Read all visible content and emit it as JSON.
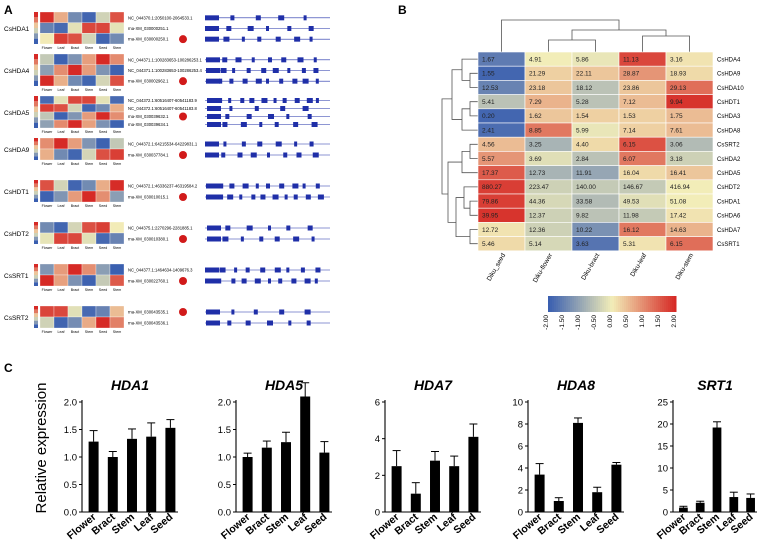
{
  "panels": {
    "a": "A",
    "b": "B",
    "c": "C"
  },
  "panel_a": {
    "tissues": [
      "Flower",
      "Leaf",
      "Bract",
      "Stem",
      "Seed",
      "Stem"
    ],
    "genes": [
      {
        "name": "CsHDA1",
        "ids": [
          "NC_044370.1:2050100-2064533.1",
          "rna-XM_030000251.1",
          "rna-XM_030000250.1"
        ],
        "red_dot_row": 2
      },
      {
        "name": "CsHDA4",
        "ids": [
          "NC_044371.1:100283653-100286253.1",
          "NC_044371.1:100283653-100286253.4",
          "rna-XM_030002962.1"
        ],
        "red_dot_row": 2
      },
      {
        "name": "CsHDA5",
        "ids": [
          "NC_044372.1:60516407-60541183.9",
          "NC_044372.1:60516407-60541183.8",
          "rna-XM_030039632.1",
          "rna-XM_030039634.1"
        ],
        "red_dot_row": 2
      },
      {
        "name": "CsHDA9",
        "ids": [
          "NC_044372.1:64215534-64229831.1",
          "rna-XM_030037784.1"
        ],
        "red_dot_row": 1
      },
      {
        "name": "CsHDT1",
        "ids": [
          "NC_044372.1:46336237-46319584.2",
          "rna-XM_030010015.1"
        ],
        "red_dot_row": 1
      },
      {
        "name": "CsHDT2",
        "ids": [
          "NC_044375.1:2270296-2281885.1",
          "rna-XM_030010380.1"
        ],
        "red_dot_row": 1
      },
      {
        "name": "CsSRT1",
        "ids": [
          "NC_044377.1:1464634-1409676.3",
          "rna-XM_030022760.1"
        ],
        "red_dot_row": 1
      },
      {
        "name": "CsSRT2",
        "ids": [
          "rna-XM_030043535.1",
          "rna-XM_030043536.1"
        ],
        "red_dot_row": 0
      }
    ]
  },
  "heatmap": {
    "rows": [
      "CsHDA4",
      "CsHDA9",
      "CsHDA10",
      "CsHDT1",
      "CsHDA3",
      "CsHDA8",
      "CsSRT2",
      "CsHDA2",
      "CsHDA5",
      "CsHDT2",
      "CsHDA1",
      "CsHDA6",
      "CsHDA7",
      "CsSRT1"
    ],
    "columns": [
      "Diku_seed",
      "Diku-flower",
      "Diku-bract",
      "Diku-leaf",
      "Diku-stem"
    ],
    "labels": [
      [
        "1.67",
        "4.91",
        "5.86",
        "11.13",
        "3.16"
      ],
      [
        "1.55",
        "21.29",
        "22.11",
        "28.87",
        "18.93"
      ],
      [
        "12.53",
        "23.18",
        "18.12",
        "23.86",
        "29.13"
      ],
      [
        "5.41",
        "7.29",
        "5.28",
        "7.12",
        "9.94"
      ],
      [
        "0.20",
        "1.62",
        "1.54",
        "1.53",
        "1.75"
      ],
      [
        "2.41",
        "8.85",
        "5.99",
        "7.14",
        "7.61"
      ],
      [
        "4.56",
        "3.25",
        "4.40",
        "6.15",
        "3.06"
      ],
      [
        "5.57",
        "3.69",
        "2.84",
        "6.07",
        "3.18"
      ],
      [
        "17.37",
        "12.73",
        "11.91",
        "16.04",
        "16.41"
      ],
      [
        "880.27",
        "223.47",
        "140.00",
        "146.67",
        "416.94"
      ],
      [
        "79.86",
        "44.36",
        "33.58",
        "49.53",
        "51.08"
      ],
      [
        "39.95",
        "12.37",
        "9.82",
        "11.98",
        "17.42"
      ],
      [
        "12.72",
        "12.36",
        "10.22",
        "16.12",
        "14.63"
      ],
      [
        "5.46",
        "5.14",
        "3.63",
        "5.31",
        "6.15"
      ]
    ],
    "zscores": [
      [
        -1.6,
        0.0,
        -0.1,
        1.7,
        0.1
      ],
      [
        -1.9,
        0.3,
        0.4,
        0.9,
        0.2
      ],
      [
        -1.5,
        0.4,
        -0.6,
        0.4,
        1.3
      ],
      [
        -0.6,
        0.6,
        -0.6,
        0.5,
        1.9
      ],
      [
        -1.9,
        0.4,
        0.3,
        0.3,
        0.5
      ],
      [
        -1.8,
        1.2,
        -0.1,
        0.3,
        0.5
      ],
      [
        0.5,
        -0.8,
        0.2,
        1.6,
        -0.7
      ],
      [
        0.9,
        -0.2,
        -0.6,
        1.2,
        -0.4
      ],
      [
        1.5,
        -0.8,
        -1.0,
        0.2,
        0.4
      ],
      [
        1.8,
        -0.4,
        -0.5,
        -0.5,
        0.0
      ],
      [
        1.8,
        -0.3,
        -0.7,
        -0.2,
        0.0
      ],
      [
        1.9,
        -0.4,
        -0.6,
        -0.5,
        0.1
      ],
      [
        0.1,
        -0.4,
        -1.3,
        1.2,
        0.6
      ],
      [
        0.2,
        -0.3,
        -1.7,
        0.1,
        1.3
      ]
    ],
    "scale_ticks": [
      "-2.00",
      "-1.50",
      "-1.00",
      "-0.50",
      "0.00",
      "0.50",
      "1.00",
      "1.50",
      "2.00"
    ],
    "colors": {
      "low": "#3a5fb0",
      "mid": "#f2edb8",
      "high": "#d62a26"
    }
  },
  "chart_data": [
    {
      "type": "bar",
      "title": "HDA1",
      "ylabel": "Relative expression",
      "categories": [
        "Flower",
        "Bract",
        "Stem",
        "Leaf",
        "Seed"
      ],
      "values": [
        1.28,
        1.0,
        1.33,
        1.37,
        1.53
      ],
      "errors": [
        0.2,
        0.1,
        0.18,
        0.25,
        0.15
      ],
      "ylim": [
        0,
        2.0
      ],
      "yticks": [
        "0.0",
        "0.5",
        "1.0",
        "1.5",
        "2.0"
      ]
    },
    {
      "type": "bar",
      "title": "HDA5",
      "categories": [
        "Flower",
        "Bract",
        "Stem",
        "Leaf",
        "Seed"
      ],
      "values": [
        1.0,
        1.17,
        1.27,
        2.1,
        1.08
      ],
      "errors": [
        0.07,
        0.12,
        0.18,
        0.25,
        0.2
      ],
      "ylim": [
        0,
        2.0
      ],
      "yticks": [
        "0.0",
        "0.5",
        "1.0",
        "1.5",
        "2.0"
      ]
    },
    {
      "type": "bar",
      "title": "HDA7",
      "categories": [
        "Flower",
        "Bract",
        "Stem",
        "Leaf",
        "Seed"
      ],
      "values": [
        2.5,
        1.0,
        2.8,
        2.5,
        4.1
      ],
      "errors": [
        0.85,
        0.6,
        0.5,
        0.55,
        0.7
      ],
      "ylim": [
        0,
        6
      ],
      "yticks": [
        "0",
        "2",
        "4",
        "6"
      ]
    },
    {
      "type": "bar",
      "title": "HDA8",
      "categories": [
        "Flower",
        "Bract",
        "Stem",
        "Leaf",
        "Seed"
      ],
      "values": [
        3.4,
        1.0,
        8.1,
        1.8,
        4.3
      ],
      "errors": [
        1.0,
        0.3,
        0.45,
        0.45,
        0.2
      ],
      "ylim": [
        0,
        10
      ],
      "yticks": [
        "0",
        "2",
        "4",
        "6",
        "8",
        "10"
      ]
    },
    {
      "type": "bar",
      "title": "SRT1",
      "categories": [
        "Flower",
        "Bract",
        "Stem",
        "Leaf",
        "Seed"
      ],
      "values": [
        1.0,
        2.1,
        19.2,
        3.4,
        3.2
      ],
      "errors": [
        0.3,
        0.35,
        1.3,
        1.1,
        0.9
      ],
      "ylim": [
        0,
        25
      ],
      "yticks": [
        "0",
        "5",
        "10",
        "15",
        "20",
        "25"
      ]
    }
  ]
}
